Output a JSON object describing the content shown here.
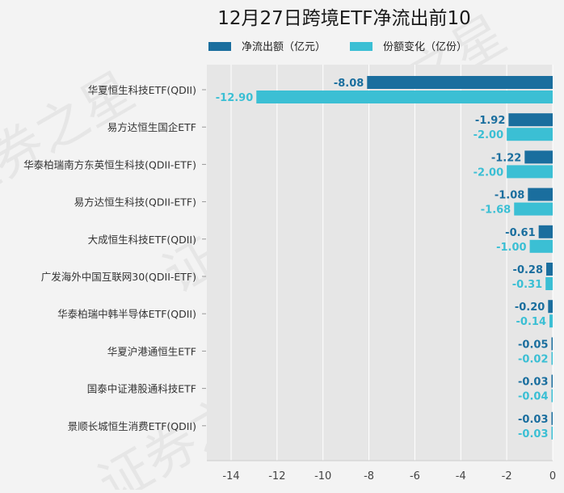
{
  "chart_data": {
    "type": "bar",
    "orientation": "horizontal",
    "title": "12月27日跨境ETF净流出前10",
    "xlabel": "",
    "ylabel": "",
    "xlim": [
      -15,
      0
    ],
    "xticks": [
      -14,
      -12,
      -10,
      -8,
      -6,
      -4,
      -2,
      0
    ],
    "grid": true,
    "legend_position": "top",
    "categories": [
      "华夏恒生科技ETF(QDII)",
      "易方达恒生国企ETF",
      "华泰柏瑞南方东英恒生科技(QDII-ETF)",
      "易方达恒生科技(QDII-ETF)",
      "大成恒生科技ETF(QDII)",
      "广发海外中国互联网30(QDII-ETF)",
      "华泰柏瑞中韩半导体ETF(QDII)",
      "华夏沪港通恒生ETF",
      "国泰中证港股通科技ETF",
      "景顺长城恒生消费ETF(QDII)"
    ],
    "series": [
      {
        "name": "净流出额（亿元）",
        "color": "#1a6e9e",
        "values": [
          -8.08,
          -1.92,
          -1.22,
          -1.08,
          -0.61,
          -0.28,
          -0.2,
          -0.05,
          -0.03,
          -0.03
        ],
        "labels": [
          "-8.08",
          "-1.92",
          "-1.22",
          "-1.08",
          "-0.61",
          "-0.28",
          "-0.20",
          "-0.05",
          "-0.03",
          "-0.03"
        ]
      },
      {
        "name": "份额变化（亿份）",
        "color": "#3bbfd4",
        "values": [
          -12.9,
          -2.0,
          -2.0,
          -1.68,
          -1.0,
          -0.31,
          -0.14,
          -0.02,
          -0.04,
          -0.03
        ],
        "labels": [
          "-12.90",
          "-2.00",
          "-2.00",
          "-1.68",
          "-1.00",
          "-0.31",
          "-0.14",
          "-0.02",
          "-0.04",
          "-0.03"
        ]
      }
    ]
  },
  "watermark": "证券之星"
}
